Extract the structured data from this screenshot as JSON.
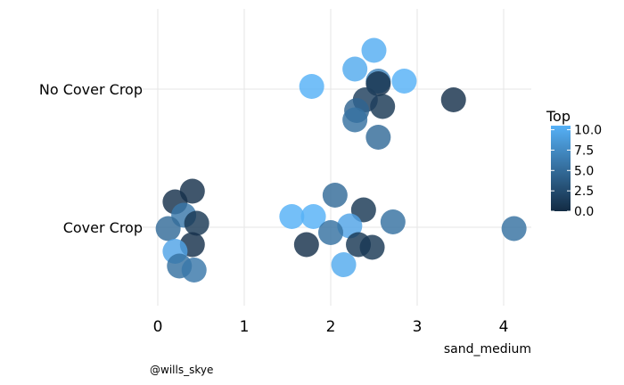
{
  "chart_data": {
    "type": "scatter",
    "title": "",
    "xlabel": "sand_medium",
    "ylabel": "",
    "xlim": [
      0,
      4.3
    ],
    "x_ticks": [
      0,
      1,
      2,
      3,
      4
    ],
    "categories": [
      "Cover Crop",
      "No Cover Crop"
    ],
    "grid": true,
    "legend": {
      "title": "Top",
      "position": "right",
      "type": "colorbar",
      "range": [
        0,
        10.5
      ],
      "ticks": [
        "10.0",
        "7.5",
        "5.0",
        "2.5",
        "0.0"
      ],
      "tick_values": [
        10,
        7.5,
        5,
        2.5,
        0
      ],
      "low_color": "#132B43",
      "high_color": "#56B1F7"
    },
    "caption": "@wills_skye",
    "series": [
      {
        "category": "No Cover Crop",
        "points": [
          {
            "x": 1.78,
            "offset": 0.02,
            "color": 10.5
          },
          {
            "x": 2.28,
            "offset": 0.15,
            "color": 10.0
          },
          {
            "x": 2.5,
            "offset": 0.29,
            "color": 10.2
          },
          {
            "x": 2.85,
            "offset": 0.06,
            "color": 10.5
          },
          {
            "x": 2.55,
            "offset": 0.06,
            "color": 7.0
          },
          {
            "x": 2.55,
            "offset": 0.04,
            "color": 0.5
          },
          {
            "x": 2.6,
            "offset": -0.13,
            "color": 1.0
          },
          {
            "x": 2.4,
            "offset": -0.08,
            "color": 1.5
          },
          {
            "x": 2.3,
            "offset": -0.16,
            "color": 4.5
          },
          {
            "x": 2.28,
            "offset": -0.23,
            "color": 5.5
          },
          {
            "x": 2.55,
            "offset": -0.36,
            "color": 5.0
          },
          {
            "x": 3.42,
            "offset": -0.08,
            "color": 0.5
          }
        ]
      },
      {
        "category": "Cover Crop",
        "points": [
          {
            "x": 0.4,
            "offset": 0.27,
            "color": 0.5
          },
          {
            "x": 0.2,
            "offset": 0.19,
            "color": 0.5
          },
          {
            "x": 0.3,
            "offset": 0.09,
            "color": 6.0
          },
          {
            "x": 0.45,
            "offset": 0.03,
            "color": 1.0
          },
          {
            "x": 0.12,
            "offset": -0.01,
            "color": 5.0
          },
          {
            "x": 0.4,
            "offset": -0.13,
            "color": 0.5
          },
          {
            "x": 0.2,
            "offset": -0.18,
            "color": 9.5
          },
          {
            "x": 0.25,
            "offset": -0.29,
            "color": 5.5
          },
          {
            "x": 0.42,
            "offset": -0.32,
            "color": 6.0
          },
          {
            "x": 2.05,
            "offset": 0.24,
            "color": 5.0
          },
          {
            "x": 2.38,
            "offset": 0.13,
            "color": 1.0
          },
          {
            "x": 1.55,
            "offset": 0.08,
            "color": 10.5
          },
          {
            "x": 1.8,
            "offset": 0.08,
            "color": 10.5
          },
          {
            "x": 2.72,
            "offset": 0.04,
            "color": 5.5
          },
          {
            "x": 2.22,
            "offset": 0.01,
            "color": 9.5
          },
          {
            "x": 2.0,
            "offset": -0.04,
            "color": 5.5
          },
          {
            "x": 1.72,
            "offset": -0.13,
            "color": 0.5
          },
          {
            "x": 2.32,
            "offset": -0.13,
            "color": 1.0
          },
          {
            "x": 2.48,
            "offset": -0.15,
            "color": 1.0
          },
          {
            "x": 2.15,
            "offset": -0.28,
            "color": 10.0
          },
          {
            "x": 4.12,
            "offset": -0.01,
            "color": 5.5
          }
        ]
      }
    ]
  }
}
